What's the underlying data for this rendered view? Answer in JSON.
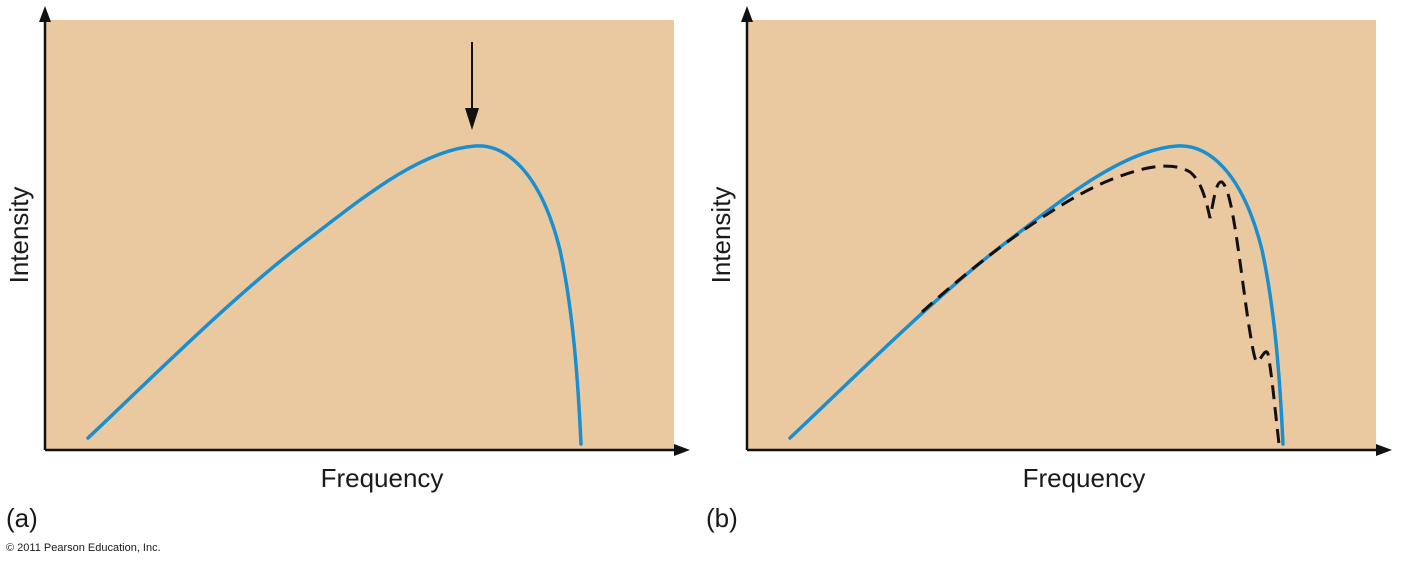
{
  "colors": {
    "plot_background": "#ebc9a0",
    "curve": "#1a8fd0",
    "dashed_curve": "#111111",
    "axis": "#111111"
  },
  "panels": [
    {
      "letter": "(a)",
      "xlabel": "Frequency",
      "ylabel": "Intensity",
      "has_peak_arrow": true,
      "has_dashed_curve": false
    },
    {
      "letter": "(b)",
      "xlabel": "Frequency",
      "ylabel": "Intensity",
      "has_peak_arrow": false,
      "has_dashed_curve": true
    }
  ],
  "copyright": "© 2011 Pearson Education, Inc."
}
